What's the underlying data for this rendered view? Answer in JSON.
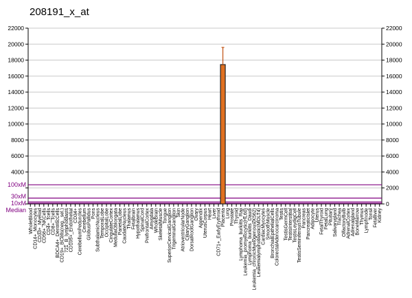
{
  "chart_data": {
    "type": "bar",
    "title": "208191_x_at",
    "ylim": [
      0,
      22000
    ],
    "yticks": [
      0,
      2000,
      4000,
      6000,
      8000,
      10000,
      12000,
      14000,
      16000,
      18000,
      20000,
      22000
    ],
    "grid": true,
    "bar_color": "#e07020",
    "error_color": "#c05010",
    "reference_color": "#800080",
    "reference_lines": [
      {
        "name": "100xM",
        "value": 2400
      },
      {
        "name": "30xM",
        "value": 730
      },
      {
        "name": "10xM",
        "value": 250
      },
      {
        "name": "Median",
        "value": 80
      }
    ],
    "categories": [
      "WholeBlood",
      "CD14+_Monocytes",
      "CD33+_Myeloid",
      "CD56+_NKCells",
      "CD4+_Tcells",
      "CD8+_Tcells",
      "BDCA4+_DentriticCells",
      "CD19+_BCells(neg._sel.)",
      "721_B_lymphoblasts",
      "CD105+_Endothelial",
      "CD34+",
      "CerebellumPeduncles",
      "Cerebellum",
      "GlobusPallidus",
      "Pons",
      "SubthalamicNucleus",
      "TemporalLobe",
      "OccipitalLobe",
      "CingulateCortex",
      "MedullaOblongata",
      "ParietalLobe",
      "CaudateNucleus",
      "Thalamus",
      "Fetalbrain",
      "Hypothalamus",
      "SpinalCord",
      "PrefrontalCortex",
      "Amygdala",
      "WholeBrain",
      "SkeletalMuscle",
      "Tongue",
      "SuperiorCervicalGanglion",
      "TrigeminalGanglion",
      "Skin",
      "AtrioventricularNode",
      "CiliaryGanglion",
      "DorsalRootGanglion",
      "Ovary",
      "Appendix",
      "UterusCorpus",
      "Heart",
      "Liver",
      "CD71+_EarlyErythroid",
      "Placenta",
      "Lung",
      "Prostate",
      "Thyroid",
      "Lymphoma_burkitts_Raji",
      "Leukemia_promyelocytic(HL60)",
      "Lymphoma_burkitts_Daudi",
      "Leukemia_chronicMyelogenous(K562)",
      "Leukemialymphoblastic(MOLT4)",
      "CardiacMyocytes",
      "SmoothMuscle",
      "BronchialEpithelialCells",
      "ColorectalAdenocarcinoma",
      "Testis",
      "TestisGermCell",
      "TestisInterstitial",
      "TestisLeydigCell",
      "TestisSeminiferousTubule",
      "Pancreas",
      "PancreaticIslet",
      "Adipocyte",
      "Uterus",
      "FetalThyroid",
      "FetalLung",
      "Pituitary",
      "Salivarygland",
      "Trachea",
      "OlfactoryBulb",
      "AdrenalCortex",
      "Adrenalgland",
      "BoneMarrow",
      "Thymus",
      "Lymphnode",
      "Tonsil",
      "Fetalliver",
      "Kidney"
    ],
    "values": [
      0,
      0,
      0,
      0,
      0,
      0,
      0,
      0,
      0,
      0,
      0,
      0,
      0,
      0,
      0,
      0,
      0,
      0,
      0,
      0,
      0,
      0,
      0,
      0,
      0,
      0,
      0,
      0,
      0,
      0,
      0,
      0,
      0,
      0,
      0,
      0,
      0,
      0,
      0,
      0,
      0,
      0,
      0,
      17440,
      0,
      0,
      0,
      0,
      0,
      0,
      0,
      0,
      0,
      0,
      0,
      0,
      0,
      0,
      0,
      0,
      0,
      0,
      0,
      0,
      0,
      0,
      0,
      0,
      0,
      0,
      0,
      0,
      0,
      0,
      0,
      0,
      0,
      0,
      0
    ],
    "errors": {
      "Placenta": 2150
    }
  }
}
